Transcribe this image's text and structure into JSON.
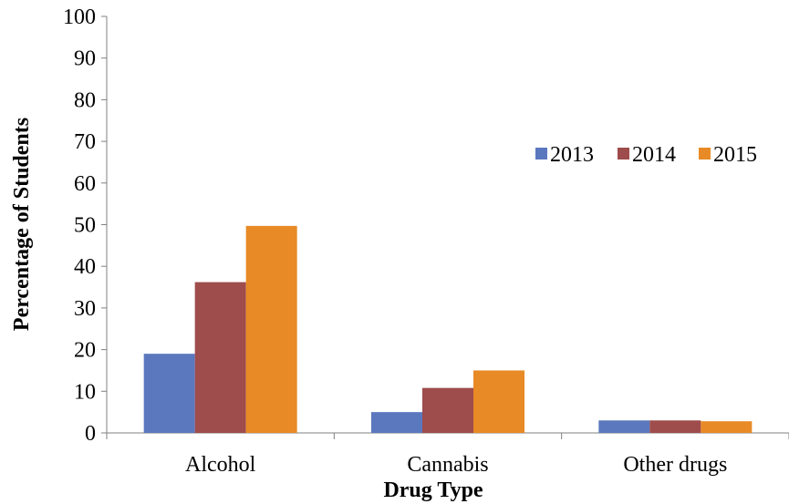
{
  "chart_data": {
    "type": "bar",
    "categories": [
      "Alcohol",
      "Cannabis",
      "Other drugs"
    ],
    "series": [
      {
        "name": "2013",
        "values": [
          19.0,
          5.0,
          3.0
        ],
        "color": "#5b78be"
      },
      {
        "name": "2014",
        "values": [
          36.2,
          10.8,
          3.0
        ],
        "color": "#9e4c4c"
      },
      {
        "name": "2015",
        "values": [
          49.7,
          15.0,
          2.8
        ],
        "color": "#e88a26"
      }
    ],
    "title": "",
    "xlabel": "Drug Type",
    "ylabel": "Percentage of Students",
    "ylim": [
      0,
      100
    ],
    "yticks": [
      "0",
      "10",
      "20",
      "30",
      "40",
      "50",
      "60",
      "70",
      "80",
      "90",
      "100"
    ],
    "grid": false,
    "legend": "right"
  }
}
